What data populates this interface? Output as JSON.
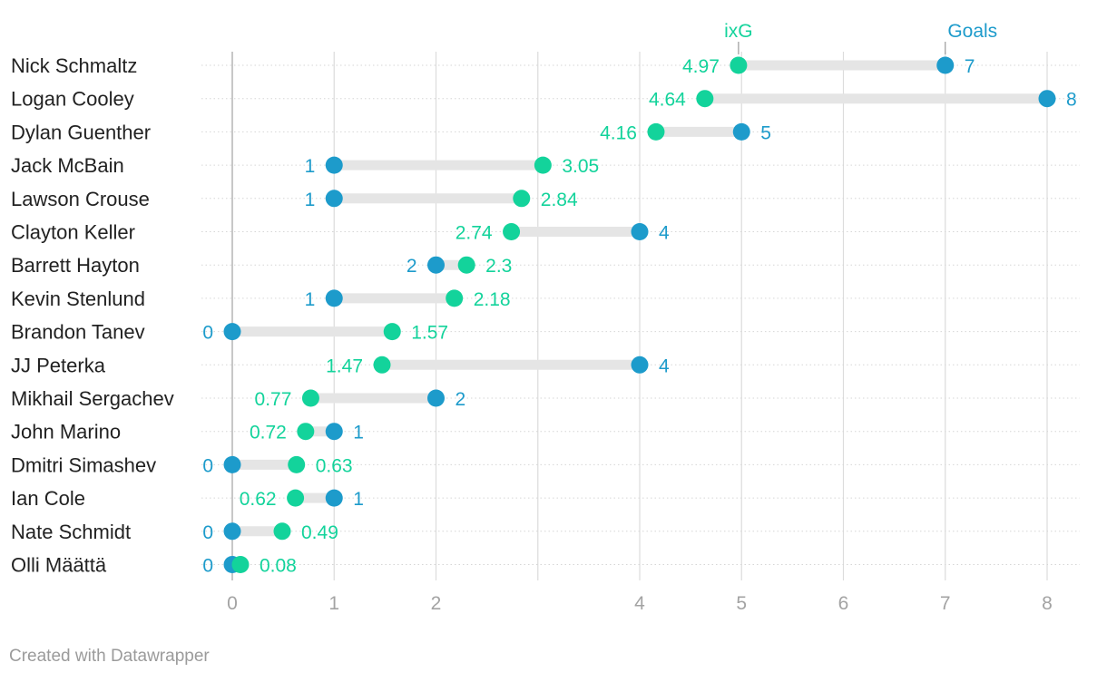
{
  "colors": {
    "goals": "#1d9bcb",
    "ixg": "#13d39b",
    "range_bar": "#e5e5e5",
    "grid": "#dcdcdc",
    "zero_line": "#b9b9b9"
  },
  "legend": {
    "ixg_label": "ixG",
    "goals_label": "Goals"
  },
  "footer": {
    "text": "Created with Datawrapper"
  },
  "chart_data": {
    "type": "dot-range",
    "title": "",
    "xlabel": "",
    "ylabel": "",
    "xlim": [
      0,
      8
    ],
    "x_ticks": [
      0,
      1,
      2,
      4,
      5,
      6,
      7,
      8
    ],
    "series": [
      {
        "name": "ixG",
        "key": "ixg"
      },
      {
        "name": "Goals",
        "key": "goals"
      }
    ],
    "rows": [
      {
        "player": "Nick Schmaltz",
        "ixg": 4.97,
        "goals": 7
      },
      {
        "player": "Logan Cooley",
        "ixg": 4.64,
        "goals": 8
      },
      {
        "player": "Dylan Guenther",
        "ixg": 4.16,
        "goals": 5
      },
      {
        "player": "Jack McBain",
        "ixg": 3.05,
        "goals": 1
      },
      {
        "player": "Lawson Crouse",
        "ixg": 2.84,
        "goals": 1
      },
      {
        "player": "Clayton Keller",
        "ixg": 2.74,
        "goals": 4
      },
      {
        "player": "Barrett Hayton",
        "ixg": 2.3,
        "goals": 2
      },
      {
        "player": "Kevin Stenlund",
        "ixg": 2.18,
        "goals": 1
      },
      {
        "player": "Brandon Tanev",
        "ixg": 1.57,
        "goals": 0
      },
      {
        "player": "JJ Peterka",
        "ixg": 1.47,
        "goals": 4
      },
      {
        "player": "Mikhail Sergachev",
        "ixg": 0.77,
        "goals": 2
      },
      {
        "player": "John Marino",
        "ixg": 0.72,
        "goals": 1
      },
      {
        "player": "Dmitri Simashev",
        "ixg": 0.63,
        "goals": 0
      },
      {
        "player": "Ian Cole",
        "ixg": 0.62,
        "goals": 1
      },
      {
        "player": "Nate Schmidt",
        "ixg": 0.49,
        "goals": 0
      },
      {
        "player": "Olli Määttä",
        "ixg": 0.08,
        "goals": 0
      }
    ]
  }
}
